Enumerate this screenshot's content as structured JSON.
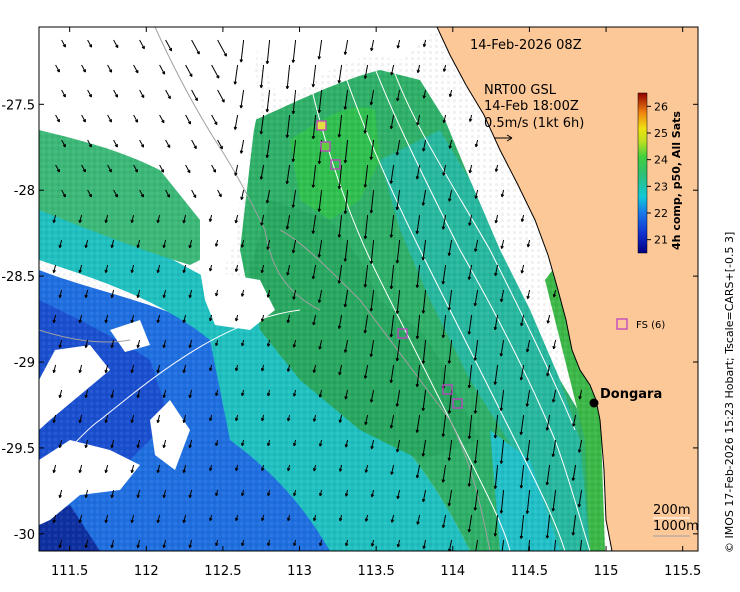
{
  "map": {
    "x_ticks": [
      "111.5",
      "112",
      "112.5",
      "113",
      "113.5",
      "114",
      "114.5",
      "115",
      "115.5"
    ],
    "x_tick_values": [
      111.5,
      112,
      112.5,
      113,
      113.5,
      114,
      114.5,
      115,
      115.5
    ],
    "y_ticks": [
      "-27.5",
      "-28",
      "-28.5",
      "-29",
      "-29.5",
      "-30"
    ],
    "y_tick_values": [
      -27.5,
      -28,
      -28.5,
      -29,
      -29.5,
      -30
    ],
    "lon_range": [
      111.3,
      115.6
    ],
    "lat_range": [
      -30.1,
      -27.05
    ],
    "date_title": "14-Feb-2026 08Z",
    "current_product": {
      "line1": "NRT00 GSL",
      "line2": "14-Feb 18:00Z",
      "line3": "0.5m/s (1kt 6h)"
    },
    "place_label": "Dongara",
    "station_label": "FS (6)",
    "depth_contours": [
      "200m",
      "1000m"
    ],
    "footer_credit": "© IMOS 17-Feb-2026 15:23 Hobart; Tscale=CARS+[-0.5 3]",
    "colorbar": {
      "label": "4h comp, p50, All Sats",
      "ticks": [
        "21",
        "22",
        "23",
        "24",
        "25",
        "26"
      ],
      "tick_values": [
        21,
        22,
        23,
        24,
        25,
        26
      ],
      "range": [
        20.5,
        26.5
      ]
    },
    "colors": {
      "land": "#fdc898",
      "coast": "#000000",
      "contour": "#ffffff",
      "marker": "#c040c0"
    }
  }
}
